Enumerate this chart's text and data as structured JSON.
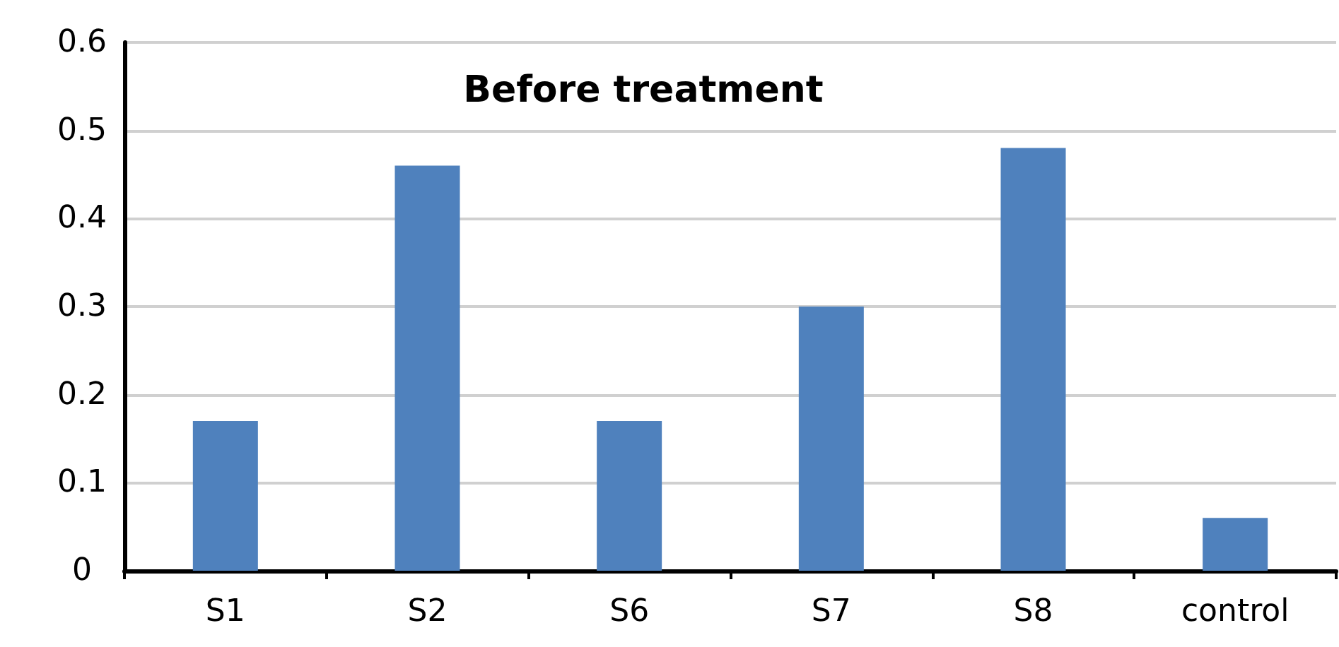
{
  "chart_data": {
    "type": "bar",
    "title": "Before treatment",
    "categories": [
      "S1",
      "S2",
      "S6",
      "S7",
      "S8",
      "control"
    ],
    "values": [
      0.17,
      0.46,
      0.17,
      0.3,
      0.48,
      0.06
    ],
    "color": "#4f81bd",
    "ylim": [
      0,
      0.6
    ],
    "yticks": [
      0,
      0.1,
      0.2,
      0.3,
      0.4,
      0.5,
      0.6
    ],
    "grid": "y"
  }
}
